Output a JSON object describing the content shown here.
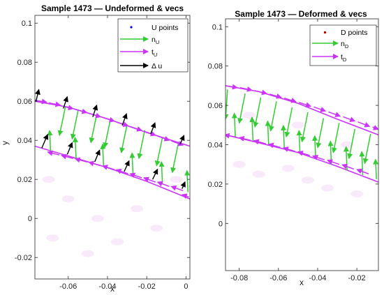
{
  "colors": {
    "points": "#0000ff",
    "points_D": "#cc0000",
    "normal": "#33cc33",
    "tangent": "#cc33ff",
    "delta": "#000000"
  },
  "chart_data": [
    {
      "type": "scatter",
      "title": "Sample 1473 — Undeformed & vecs",
      "xlabel": "x",
      "ylabel": "y",
      "xlim": [
        -0.077,
        0.002
      ],
      "ylim": [
        -0.031,
        0.104
      ],
      "xticks": [
        -0.06,
        -0.04,
        -0.02,
        0
      ],
      "xtick_labels": [
        "-0.06",
        "-0.04",
        "-0.02",
        "0"
      ],
      "yticks": [
        -0.02,
        0,
        0.02,
        0.04,
        0.06,
        0.08,
        0.1
      ],
      "ytick_labels": [
        "-0.02",
        "0",
        "0.02",
        "0.04",
        "0.06",
        "0.08",
        "0.1"
      ],
      "legend": {
        "placement": "top-right",
        "entries": [
          {
            "marker": "point",
            "label": "U points",
            "main": "U points",
            "sub": ""
          },
          {
            "marker": "arrow-normal",
            "label": "nU",
            "main": "n",
            "sub": "U"
          },
          {
            "marker": "arrow-tangent",
            "label": "tU",
            "main": "t",
            "sub": "U"
          },
          {
            "marker": "arrow-delta",
            "label": "Δ u",
            "main": "Δ u",
            "sub": ""
          }
        ]
      },
      "curves": [
        {
          "name": "upper boundary",
          "x": [
            -0.077,
            -0.06,
            -0.04,
            -0.02,
            0.002
          ],
          "y": [
            0.06,
            0.057,
            0.051,
            0.044,
            0.037
          ]
        },
        {
          "name": "lower boundary",
          "x": [
            -0.077,
            -0.06,
            -0.04,
            -0.02,
            0.002
          ],
          "y": [
            0.037,
            0.032,
            0.026,
            0.019,
            0.01
          ]
        }
      ],
      "normal_vectors": {
        "scale": 0.012,
        "items": [
          {
            "x": -0.0615,
            "y": 0.057,
            "dx": -0.003,
            "dy": -0.0145
          },
          {
            "x": -0.055,
            "y": 0.0552,
            "dx": -0.003,
            "dy": -0.0145
          },
          {
            "x": -0.0455,
            "y": 0.0533,
            "dx": -0.003,
            "dy": -0.0145
          },
          {
            "x": -0.0385,
            "y": 0.0508,
            "dx": -0.003,
            "dy": -0.0145
          },
          {
            "x": -0.03,
            "y": 0.0482,
            "dx": -0.003,
            "dy": -0.0145
          },
          {
            "x": -0.021,
            "y": 0.0452,
            "dx": -0.003,
            "dy": -0.0145
          },
          {
            "x": -0.012,
            "y": 0.0415,
            "dx": -0.003,
            "dy": -0.0145
          },
          {
            "x": -0.004,
            "y": 0.038,
            "dx": -0.003,
            "dy": -0.0145
          },
          {
            "x": -0.069,
            "y": 0.034,
            "dx": -0.0005,
            "dy": 0.011
          },
          {
            "x": -0.056,
            "y": 0.0305,
            "dx": -0.0005,
            "dy": 0.011
          },
          {
            "x": -0.042,
            "y": 0.027,
            "dx": -0.0005,
            "dy": 0.011
          },
          {
            "x": -0.027,
            "y": 0.0225,
            "dx": -0.0005,
            "dy": 0.011
          },
          {
            "x": -0.012,
            "y": 0.018,
            "dx": -0.0005,
            "dy": 0.011
          },
          {
            "x": 0.001,
            "y": 0.0135,
            "dx": -0.0005,
            "dy": 0.011
          }
        ]
      },
      "tangent_vectors": {
        "items": [
          {
            "x": -0.077,
            "y": 0.0605,
            "dx": 0.006,
            "dy": -0.001
          },
          {
            "x": -0.07,
            "y": 0.0592,
            "dx": 0.006,
            "dy": -0.0012
          },
          {
            "x": -0.0635,
            "y": 0.0576,
            "dx": 0.006,
            "dy": -0.0014
          },
          {
            "x": -0.0565,
            "y": 0.0558,
            "dx": 0.006,
            "dy": -0.0016
          },
          {
            "x": -0.0495,
            "y": 0.0538,
            "dx": 0.006,
            "dy": -0.0018
          },
          {
            "x": -0.0425,
            "y": 0.0517,
            "dx": 0.006,
            "dy": -0.0019
          },
          {
            "x": -0.0355,
            "y": 0.0494,
            "dx": 0.006,
            "dy": -0.002
          },
          {
            "x": -0.0285,
            "y": 0.0471,
            "dx": 0.006,
            "dy": -0.0021
          },
          {
            "x": -0.0215,
            "y": 0.0447,
            "dx": 0.006,
            "dy": -0.0021
          },
          {
            "x": -0.0145,
            "y": 0.0422,
            "dx": 0.006,
            "dy": -0.0022
          },
          {
            "x": -0.0075,
            "y": 0.0397,
            "dx": 0.006,
            "dy": -0.0022
          },
          {
            "x": -0.0645,
            "y": 0.0325,
            "dx": -0.006,
            "dy": 0.0015
          },
          {
            "x": -0.0575,
            "y": 0.0307,
            "dx": -0.006,
            "dy": 0.0016
          },
          {
            "x": -0.0505,
            "y": 0.0289,
            "dx": -0.006,
            "dy": 0.0017
          },
          {
            "x": -0.0435,
            "y": 0.027,
            "dx": -0.006,
            "dy": 0.0018
          },
          {
            "x": -0.0365,
            "y": 0.025,
            "dx": -0.006,
            "dy": 0.0019
          },
          {
            "x": -0.0295,
            "y": 0.0229,
            "dx": -0.006,
            "dy": 0.002
          },
          {
            "x": -0.0225,
            "y": 0.0208,
            "dx": -0.006,
            "dy": 0.0021
          },
          {
            "x": -0.0155,
            "y": 0.0186,
            "dx": -0.006,
            "dy": 0.0022
          },
          {
            "x": -0.0085,
            "y": 0.0164,
            "dx": -0.006,
            "dy": 0.0022
          },
          {
            "x": -0.0015,
            "y": 0.0142,
            "dx": -0.006,
            "dy": 0.0022
          },
          {
            "x": 0.0015,
            "y": 0.011,
            "dx": -0.0035,
            "dy": 0.0012
          }
        ]
      },
      "delta_vectors": {
        "items": [
          {
            "x": -0.0765,
            "y": 0.0598,
            "dx": 0.0015,
            "dy": 0.0062
          },
          {
            "x": -0.0625,
            "y": 0.0563,
            "dx": 0.002,
            "dy": 0.006
          },
          {
            "x": -0.0475,
            "y": 0.052,
            "dx": 0.002,
            "dy": 0.006
          },
          {
            "x": -0.0325,
            "y": 0.0476,
            "dx": 0.0022,
            "dy": 0.006
          },
          {
            "x": -0.018,
            "y": 0.0432,
            "dx": 0.0022,
            "dy": 0.0058
          },
          {
            "x": -0.003,
            "y": 0.038,
            "dx": 0.002,
            "dy": 0.0045
          },
          {
            "x": -0.0735,
            "y": 0.036,
            "dx": 0.003,
            "dy": 0.007
          },
          {
            "x": -0.0605,
            "y": 0.0328,
            "dx": 0.0025,
            "dy": 0.006
          },
          {
            "x": -0.0465,
            "y": 0.029,
            "dx": 0.0025,
            "dy": 0.006
          },
          {
            "x": -0.0315,
            "y": 0.024,
            "dx": 0.0025,
            "dy": 0.0055
          },
          {
            "x": -0.017,
            "y": 0.02,
            "dx": 0.0025,
            "dy": 0.0052
          },
          {
            "x": -0.002,
            "y": 0.0152,
            "dx": 0.0015,
            "dy": 0.0035
          }
        ]
      },
      "faint_blobs": [
        {
          "x": -0.06,
          "y": 0.01
        },
        {
          "x": -0.045,
          "y": 0.0
        },
        {
          "x": -0.025,
          "y": 0.005
        },
        {
          "x": -0.068,
          "y": -0.01
        },
        {
          "x": -0.05,
          "y": -0.018
        },
        {
          "x": -0.035,
          "y": -0.012
        },
        {
          "x": -0.015,
          "y": -0.005
        },
        {
          "x": -0.005,
          "y": 0.02
        },
        {
          "x": -0.07,
          "y": 0.02
        }
      ]
    },
    {
      "type": "scatter",
      "title": "Sample 1473 — Deformed & vecs",
      "xlabel": "x",
      "ylabel": "",
      "xlim": [
        -0.087,
        -0.009
      ],
      "ylim": [
        -0.024,
        0.104
      ],
      "xticks": [
        -0.08,
        -0.06,
        -0.04,
        -0.02
      ],
      "xtick_labels": [
        "-0.08",
        "-0.06",
        "-0.04",
        "-0.02"
      ],
      "yticks": [
        0,
        0.02,
        0.04,
        0.06,
        0.08,
        0.1
      ],
      "ytick_labels": [
        "0",
        "0.02",
        "0.04",
        "0.06",
        "0.08",
        "0.1"
      ],
      "legend": {
        "placement": "top-right",
        "entries": [
          {
            "marker": "point-D",
            "label": "D points",
            "main": "D points",
            "sub": ""
          },
          {
            "marker": "arrow-normal",
            "label": "nD",
            "main": "n",
            "sub": "D"
          },
          {
            "marker": "arrow-tangent",
            "label": "tD",
            "main": "t",
            "sub": "D"
          }
        ]
      },
      "curves": [
        {
          "name": "upper boundary",
          "x": [
            -0.087,
            -0.07,
            -0.05,
            -0.03,
            -0.009
          ],
          "y": [
            0.07,
            0.067,
            0.061,
            0.053,
            0.045
          ]
        },
        {
          "name": "lower boundary",
          "x": [
            -0.087,
            -0.07,
            -0.05,
            -0.03,
            -0.009
          ],
          "y": [
            0.045,
            0.041,
            0.036,
            0.029,
            0.021
          ]
        }
      ],
      "normal_vectors": {
        "items": [
          {
            "x": -0.086,
            "y": 0.068,
            "dx": -0.001,
            "dy": -0.015
          },
          {
            "x": -0.077,
            "y": 0.066,
            "dx": -0.003,
            "dy": -0.015
          },
          {
            "x": -0.069,
            "y": 0.064,
            "dx": -0.003,
            "dy": -0.015
          },
          {
            "x": -0.061,
            "y": 0.062,
            "dx": -0.003,
            "dy": -0.015
          },
          {
            "x": -0.053,
            "y": 0.059,
            "dx": -0.003,
            "dy": -0.015
          },
          {
            "x": -0.045,
            "y": 0.0565,
            "dx": -0.003,
            "dy": -0.015
          },
          {
            "x": -0.037,
            "y": 0.0535,
            "dx": -0.003,
            "dy": -0.015
          },
          {
            "x": -0.029,
            "y": 0.051,
            "dx": -0.003,
            "dy": -0.015
          },
          {
            "x": -0.021,
            "y": 0.048,
            "dx": -0.003,
            "dy": -0.015
          },
          {
            "x": -0.013,
            "y": 0.0455,
            "dx": -0.003,
            "dy": -0.015
          },
          {
            "x": -0.082,
            "y": 0.044,
            "dx": -0.0005,
            "dy": 0.012
          },
          {
            "x": -0.073,
            "y": 0.042,
            "dx": -0.0005,
            "dy": 0.012
          },
          {
            "x": -0.065,
            "y": 0.04,
            "dx": -0.0005,
            "dy": 0.012
          },
          {
            "x": -0.057,
            "y": 0.0378,
            "dx": -0.0005,
            "dy": 0.012
          },
          {
            "x": -0.049,
            "y": 0.0352,
            "dx": -0.0005,
            "dy": 0.012
          },
          {
            "x": -0.041,
            "y": 0.0325,
            "dx": -0.0005,
            "dy": 0.012
          },
          {
            "x": -0.033,
            "y": 0.0298,
            "dx": -0.0005,
            "dy": 0.012
          },
          {
            "x": -0.025,
            "y": 0.027,
            "dx": -0.0005,
            "dy": 0.012
          },
          {
            "x": -0.017,
            "y": 0.0245,
            "dx": -0.0005,
            "dy": 0.012
          },
          {
            "x": -0.01,
            "y": 0.0225,
            "dx": -0.0005,
            "dy": 0.01
          }
        ]
      },
      "tangent_vectors": {
        "items": [
          {
            "x": -0.087,
            "y": 0.07,
            "dx": 0.006,
            "dy": -0.001
          },
          {
            "x": -0.0795,
            "y": 0.069,
            "dx": 0.006,
            "dy": -0.0013
          },
          {
            "x": -0.072,
            "y": 0.0675,
            "dx": 0.006,
            "dy": -0.0015
          },
          {
            "x": -0.0645,
            "y": 0.0657,
            "dx": 0.006,
            "dy": -0.0017
          },
          {
            "x": -0.057,
            "y": 0.0637,
            "dx": 0.006,
            "dy": -0.0019
          },
          {
            "x": -0.0495,
            "y": 0.0615,
            "dx": 0.006,
            "dy": -0.002
          },
          {
            "x": -0.042,
            "y": 0.0592,
            "dx": 0.006,
            "dy": -0.0021
          },
          {
            "x": -0.0345,
            "y": 0.0567,
            "dx": 0.006,
            "dy": -0.0022
          },
          {
            "x": -0.027,
            "y": 0.0542,
            "dx": 0.006,
            "dy": -0.0022
          },
          {
            "x": -0.0195,
            "y": 0.0516,
            "dx": 0.006,
            "dy": -0.0023
          },
          {
            "x": -0.012,
            "y": 0.049,
            "dx": 0.003,
            "dy": -0.0012
          },
          {
            "x": -0.0815,
            "y": 0.0438,
            "dx": -0.006,
            "dy": 0.0012
          },
          {
            "x": -0.074,
            "y": 0.0422,
            "dx": -0.006,
            "dy": 0.0014
          },
          {
            "x": -0.0665,
            "y": 0.0405,
            "dx": -0.006,
            "dy": 0.0016
          },
          {
            "x": -0.059,
            "y": 0.0386,
            "dx": -0.006,
            "dy": 0.0017
          },
          {
            "x": -0.0515,
            "y": 0.0366,
            "dx": -0.006,
            "dy": 0.0018
          },
          {
            "x": -0.044,
            "y": 0.0345,
            "dx": -0.006,
            "dy": 0.0019
          },
          {
            "x": -0.0365,
            "y": 0.0323,
            "dx": -0.006,
            "dy": 0.002
          },
          {
            "x": -0.029,
            "y": 0.03,
            "dx": -0.006,
            "dy": 0.0021
          },
          {
            "x": -0.0215,
            "y": 0.0276,
            "dx": -0.006,
            "dy": 0.0022
          },
          {
            "x": -0.014,
            "y": 0.0252,
            "dx": -0.006,
            "dy": 0.0022
          }
        ]
      },
      "faint_blobs": [
        {
          "x": -0.08,
          "y": 0.03
        },
        {
          "x": -0.07,
          "y": 0.025
        },
        {
          "x": -0.055,
          "y": 0.028
        },
        {
          "x": -0.045,
          "y": 0.022
        },
        {
          "x": -0.035,
          "y": 0.018
        },
        {
          "x": -0.02,
          "y": 0.015
        },
        {
          "x": -0.075,
          "y": 0.055
        },
        {
          "x": -0.05,
          "y": 0.05
        },
        {
          "x": -0.025,
          "y": 0.04
        }
      ]
    }
  ]
}
